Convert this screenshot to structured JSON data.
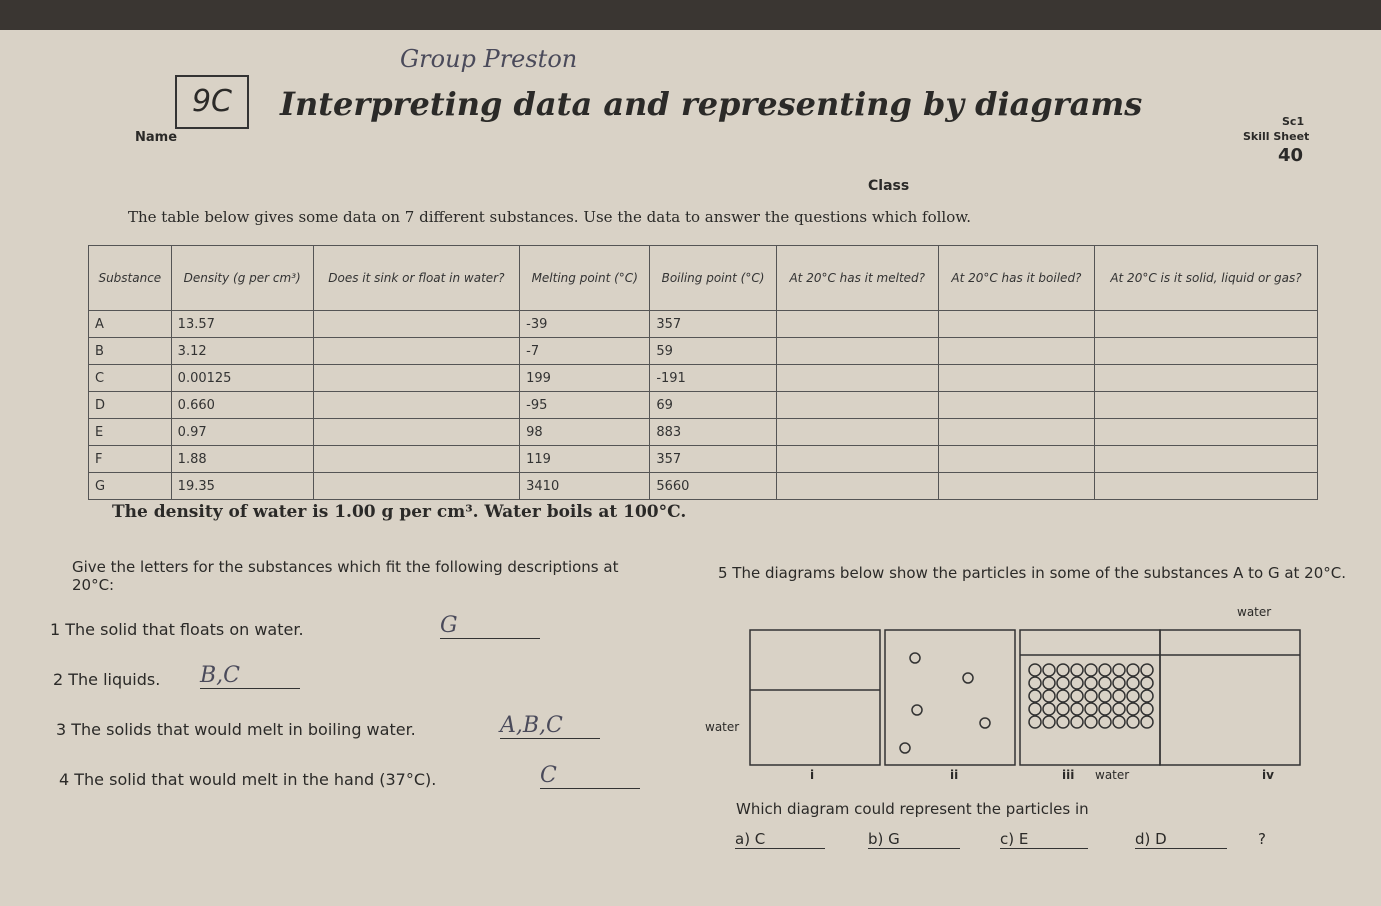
{
  "header": {
    "handwriting": "Group Preston",
    "code": "9C",
    "title": "Interpreting data and representing by diagrams",
    "name_label": "Name",
    "class_label": "Class",
    "skill_code": "Sc1",
    "skill_label": "Skill Sheet",
    "sheet_number": "40"
  },
  "intro": "The table below gives some data on 7 different substances. Use the data to answer the questions which follow.",
  "table": {
    "headers": [
      "Substance",
      "Density (g per cm³)",
      "Does it sink or float in water?",
      "Melting point (°C)",
      "Boiling point (°C)",
      "At 20°C has it melted?",
      "At 20°C has it boiled?",
      "At 20°C is it solid, liquid or gas?"
    ],
    "rows": [
      [
        "A",
        "13.57",
        "",
        "-39",
        "357",
        "",
        "",
        ""
      ],
      [
        "B",
        "3.12",
        "",
        "-7",
        "59",
        "",
        "",
        ""
      ],
      [
        "C",
        "0.00125",
        "",
        "199",
        "-191",
        "",
        "",
        ""
      ],
      [
        "D",
        "0.660",
        "",
        "-95",
        "69",
        "",
        "",
        ""
      ],
      [
        "E",
        "0.97",
        "",
        "98",
        "883",
        "",
        "",
        ""
      ],
      [
        "F",
        "1.88",
        "",
        "119",
        "357",
        "",
        "",
        ""
      ],
      [
        "G",
        "19.35",
        "",
        "3410",
        "5660",
        "",
        "",
        ""
      ]
    ]
  },
  "note": "The density of water is 1.00 g per cm³. Water boils at 100°C.",
  "instructions": "Give the letters for the substances which fit the following descriptions at 20°C:",
  "questions": [
    {
      "text": "1 The solid that floats on water.",
      "answer": "G"
    },
    {
      "text": "2 The liquids.",
      "answer": "B,C"
    },
    {
      "text": "3 The solids that would melt in boiling water.",
      "answer": "A,B,C"
    },
    {
      "text": "4 The solid that would melt in the hand (37°C).",
      "answer": "C"
    }
  ],
  "question5": {
    "text": "5 The diagrams below show the particles in some of the substances A to G at 20°C.",
    "water_labels": [
      "water",
      "water",
      "water"
    ],
    "diagram_labels": [
      "i",
      "ii",
      "iii",
      "iv"
    ],
    "prompt": "Which diagram could represent the particles in",
    "options": [
      "a) C",
      "b) G",
      "c) E",
      "d) D"
    ],
    "end": "?"
  }
}
